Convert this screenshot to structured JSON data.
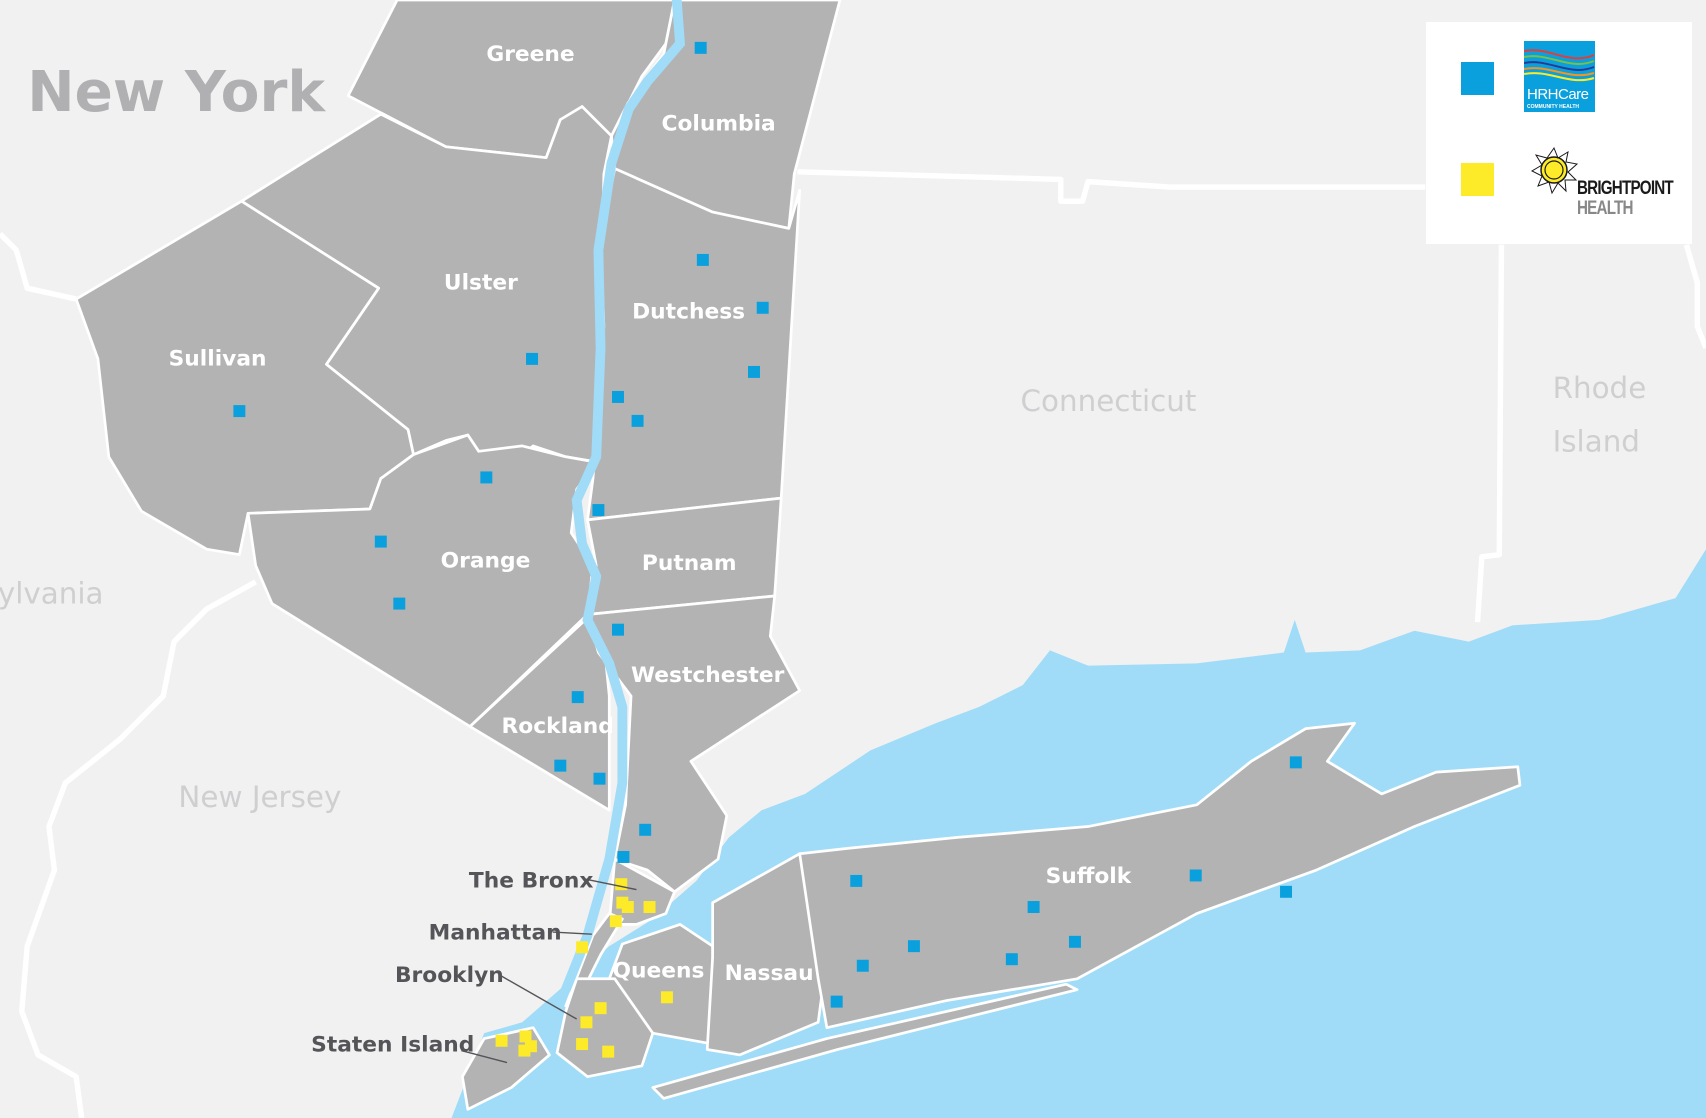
{
  "map": {
    "title": "New York",
    "states": {
      "connecticut": "Connecticut",
      "rhode_island_1": "Rhode",
      "rhode_island_2": "Island",
      "new_jersey": "New Jersey",
      "pennsylvania": "ylvania"
    },
    "counties": {
      "greene": "Greene",
      "columbia": "Columbia",
      "ulster": "Ulster",
      "dutchess": "Dutchess",
      "sullivan": "Sullivan",
      "orange": "Orange",
      "putnam": "Putnam",
      "westchester": "Westchester",
      "rockland": "Rockland",
      "queens": "Queens",
      "nassau": "Nassau",
      "suffolk": "Suffolk"
    },
    "boroughs": {
      "bronx": "The Bronx",
      "manhattan": "Manhattan",
      "brooklyn": "Brooklyn",
      "staten_island": "Staten Island"
    },
    "colors": {
      "land": "#f1f1f1",
      "county": "#b3b3b4",
      "water": "#a0dcf7",
      "hrhcare": "#0aa0dd",
      "brightpoint": "#fdeb2a"
    }
  },
  "legend": {
    "items": [
      {
        "marker_color": "#0aa0dd",
        "logo_text": "HRHCare",
        "logo_subtext": "COMMUNITY HEALTH",
        "logo": "hrhcare-logo"
      },
      {
        "marker_color": "#fdeb2a",
        "logo_text": "BRIGHTPOINT",
        "logo_subtext": "HEALTH",
        "logo": "brightpoint-sun-logo"
      }
    ]
  }
}
